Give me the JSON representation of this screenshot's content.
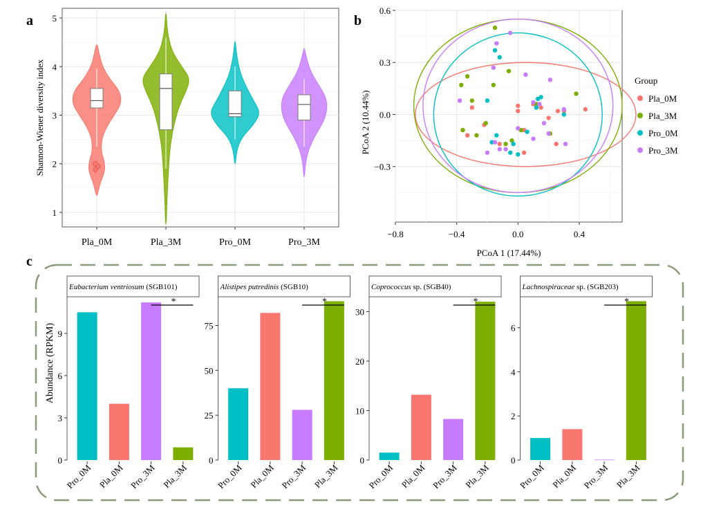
{
  "chart_data": [
    {
      "panel_label": "a",
      "type": "violin",
      "ylabel": "Shannon-Wiener diversity index",
      "ylim": [
        0.7,
        5.2
      ],
      "yticks": [
        1,
        2,
        3,
        4,
        5
      ],
      "grid": true,
      "categories": [
        "Pla_0M",
        "Pla_3M",
        "Pro_0M",
        "Pro_3M"
      ],
      "series": [
        {
          "name": "Pla_0M",
          "color": "#f8766d",
          "box": {
            "q1": 3.15,
            "median": 3.3,
            "q3": 3.55,
            "whisker_low": 2.35,
            "whisker_high": 3.95
          },
          "range": [
            1.35,
            4.45
          ],
          "profile": [
            [
              1.35,
              0.02
            ],
            [
              1.6,
              0.1
            ],
            [
              1.85,
              0.26
            ],
            [
              2.05,
              0.24
            ],
            [
              2.25,
              0.14
            ],
            [
              2.5,
              0.15
            ],
            [
              2.75,
              0.3
            ],
            [
              3.0,
              0.55
            ],
            [
              3.25,
              0.78
            ],
            [
              3.5,
              0.72
            ],
            [
              3.75,
              0.4
            ],
            [
              4.0,
              0.18
            ],
            [
              4.25,
              0.08
            ],
            [
              4.45,
              0.02
            ]
          ],
          "outliers": [
            1.88,
            1.95,
            2.0
          ]
        },
        {
          "name": "Pla_3M",
          "color": "#7cae00",
          "box": {
            "q1": 2.7,
            "median": 3.55,
            "q3": 3.85,
            "whisker_low": 1.9,
            "whisker_high": 4.6
          },
          "range": [
            0.75,
            5.1
          ],
          "profile": [
            [
              0.75,
              0.01
            ],
            [
              1.2,
              0.03
            ],
            [
              1.6,
              0.06
            ],
            [
              2.0,
              0.09
            ],
            [
              2.4,
              0.14
            ],
            [
              2.8,
              0.25
            ],
            [
              3.2,
              0.42
            ],
            [
              3.5,
              0.64
            ],
            [
              3.75,
              0.76
            ],
            [
              4.0,
              0.5
            ],
            [
              4.3,
              0.2
            ],
            [
              4.6,
              0.08
            ],
            [
              4.85,
              0.03
            ],
            [
              5.1,
              0.01
            ]
          ],
          "outliers": []
        },
        {
          "name": "Pro_0M",
          "color": "#00bfc4",
          "box": {
            "q1": 2.97,
            "median": 3.03,
            "q3": 3.5,
            "whisker_low": 2.5,
            "whisker_high": 4.0
          },
          "range": [
            2.0,
            4.52
          ],
          "profile": [
            [
              2.0,
              0.01
            ],
            [
              2.3,
              0.06
            ],
            [
              2.55,
              0.22
            ],
            [
              2.8,
              0.58
            ],
            [
              3.05,
              0.8
            ],
            [
              3.3,
              0.58
            ],
            [
              3.55,
              0.38
            ],
            [
              3.8,
              0.2
            ],
            [
              4.05,
              0.1
            ],
            [
              4.3,
              0.04
            ],
            [
              4.52,
              0.01
            ]
          ],
          "outliers": []
        },
        {
          "name": "Pro_3M",
          "color": "#c77cff",
          "box": {
            "q1": 2.9,
            "median": 3.22,
            "q3": 3.42,
            "whisker_low": 2.35,
            "whisker_high": 3.75
          },
          "range": [
            1.73,
            4.38
          ],
          "profile": [
            [
              1.73,
              0.01
            ],
            [
              2.0,
              0.04
            ],
            [
              2.3,
              0.14
            ],
            [
              2.6,
              0.36
            ],
            [
              2.85,
              0.6
            ],
            [
              3.1,
              0.72
            ],
            [
              3.35,
              0.7
            ],
            [
              3.6,
              0.48
            ],
            [
              3.85,
              0.24
            ],
            [
              4.1,
              0.1
            ],
            [
              4.38,
              0.01
            ]
          ],
          "outliers": []
        }
      ]
    },
    {
      "panel_label": "b",
      "type": "scatter",
      "xlabel": "PCoA 1 (17.44%)",
      "ylabel": "PCoA 2 (10.44%)",
      "xlim": [
        -0.8,
        0.68
      ],
      "ylim": [
        -0.62,
        0.6
      ],
      "xticks": [
        -0.8,
        -0.4,
        0.0,
        0.4
      ],
      "xtick_labels": [
        "−0.8",
        "−0.4",
        "0.0",
        "0.4"
      ],
      "yticks": [
        -0.3,
        0.0,
        0.3,
        0.6
      ],
      "ytick_labels": [
        "−0.3",
        "0.0",
        "0.3",
        "0.6"
      ],
      "grid": true,
      "legend": {
        "title": "Group",
        "position": "right",
        "entries": [
          {
            "label": "Pla_0M",
            "color": "#f8766d"
          },
          {
            "label": "Pla_3M",
            "color": "#7cae00"
          },
          {
            "label": "Pro_0M",
            "color": "#00bfc4"
          },
          {
            "label": "Pro_3M",
            "color": "#c77cff"
          }
        ]
      },
      "series": [
        {
          "name": "Pla_0M",
          "color": "#f8766d",
          "x": [
            -0.3,
            -0.33,
            -0.12,
            0.0,
            0.04,
            0.15,
            0.2,
            0.26,
            0.3,
            0.04,
            0.1,
            0.25,
            0.0,
            -0.22,
            0.44
          ],
          "y": [
            0.04,
            -0.12,
            -0.17,
            0.02,
            -0.22,
            0.04,
            -0.02,
            0.02,
            0.02,
            -0.09,
            0.06,
            -0.17,
            0.05,
            -0.06,
            0.03
          ],
          "ellipse": {
            "cx": 0.05,
            "cy": 0.0,
            "rx": 0.72,
            "ry": 0.3
          }
        },
        {
          "name": "Pla_3M",
          "color": "#7cae00",
          "x": [
            -0.15,
            -0.06,
            -0.37,
            -0.33,
            -0.36,
            -0.27,
            -0.21,
            -0.08,
            -0.04,
            0.02,
            0.38,
            0.12,
            -0.16,
            -0.3,
            0.21
          ],
          "y": [
            0.5,
            0.25,
            0.17,
            0.22,
            -0.09,
            -0.12,
            -0.05,
            -0.17,
            -0.15,
            -0.09,
            0.12,
            0.06,
            0.17,
            0.08,
            -0.11
          ],
          "ellipse": {
            "cx": 0.0,
            "cy": 0.05,
            "rx": 0.68,
            "ry": 0.5
          }
        },
        {
          "name": "Pro_0M",
          "color": "#00bfc4",
          "x": [
            -0.15,
            -0.12,
            -0.2,
            -0.17,
            -0.05,
            -0.03,
            0.06,
            0.12,
            0.13,
            0.15,
            0.3,
            0.0,
            -0.14
          ],
          "y": [
            0.37,
            0.33,
            0.08,
            -0.16,
            -0.22,
            -0.17,
            -0.1,
            0.04,
            0.09,
            0.1,
            0.0,
            -0.23,
            -0.12
          ],
          "ellipse": {
            "cx": 0.0,
            "cy": 0.0,
            "rx": 0.55,
            "ry": 0.47
          }
        },
        {
          "name": "Pro_3M",
          "color": "#c77cff",
          "x": [
            -0.14,
            -0.05,
            0.05,
            0.1,
            0.14,
            -0.38,
            -0.16,
            -0.12,
            -0.2,
            -0.08,
            0.0,
            0.1,
            0.2,
            0.31,
            0.21,
            0.17,
            0.3,
            -0.15
          ],
          "y": [
            0.41,
            0.47,
            0.23,
            0.07,
            0.06,
            0.08,
            0.27,
            -0.2,
            -0.22,
            -0.2,
            -0.08,
            -0.14,
            -0.11,
            -0.17,
            0.2,
            -0.05,
            0.03,
            -0.16
          ],
          "ellipse": {
            "cx": 0.0,
            "cy": 0.05,
            "rx": 0.62,
            "ry": 0.5
          }
        }
      ]
    },
    {
      "panel_label": "c",
      "type": "bar",
      "ylabel": "Abundance (RPKM)",
      "categories": [
        "Pro_0M",
        "Pla_0M",
        "Pro_3M",
        "Pla_3M"
      ],
      "colors": [
        "#00bfc4",
        "#f8766d",
        "#c77cff",
        "#7cae00"
      ],
      "panels": [
        {
          "title_italic": "Eubacterium ventriosum",
          "title_rest": " (SGB101)",
          "values": [
            10.5,
            4.0,
            11.2,
            0.9
          ],
          "ylim": [
            0,
            11.6
          ],
          "yticks": [
            0,
            3,
            6,
            9
          ],
          "significance": {
            "label": "*",
            "between": [
              "Pro_3M",
              "Pla_3M"
            ]
          }
        },
        {
          "title_italic": "Alistipes putredinis",
          "title_rest": " (SGB10)",
          "values": [
            40,
            82,
            28,
            88.5
          ],
          "ylim": [
            0,
            91
          ],
          "yticks": [
            0,
            25,
            50,
            75
          ],
          "significance": {
            "label": "*",
            "between": [
              "Pro_3M",
              "Pla_3M"
            ]
          }
        },
        {
          "title_italic": "Coprococcus",
          "title_rest": " sp. (SGB40)",
          "values": [
            1.5,
            13.2,
            8.3,
            32
          ],
          "ylim": [
            0,
            33
          ],
          "yticks": [
            0,
            10,
            20,
            30
          ],
          "significance": {
            "label": "*",
            "between": [
              "Pro_3M",
              "Pla_3M"
            ]
          }
        },
        {
          "title_italic": "Lachnospiraceae",
          "title_rest": " sp. (SGB203)",
          "values": [
            1.0,
            1.4,
            0.02,
            7.2
          ],
          "ylim": [
            0,
            7.4
          ],
          "yticks": [
            0,
            2,
            4,
            6
          ],
          "significance": {
            "label": "*",
            "between": [
              "Pro_3M",
              "Pla_3M"
            ]
          }
        }
      ]
    }
  ]
}
